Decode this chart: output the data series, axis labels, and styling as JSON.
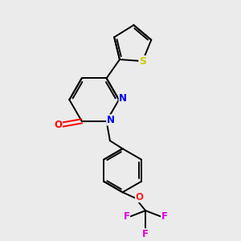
{
  "background_color": "#ebebeb",
  "bond_color": "#000000",
  "atom_colors": {
    "N": "#0000ee",
    "O_carbonyl": "#ff0000",
    "O_ether": "#ff2222",
    "S": "#cccc00",
    "F": "#dd00dd",
    "C": "#000000"
  },
  "figsize": [
    3.0,
    3.0
  ],
  "dpi": 100,
  "lw": 1.4
}
